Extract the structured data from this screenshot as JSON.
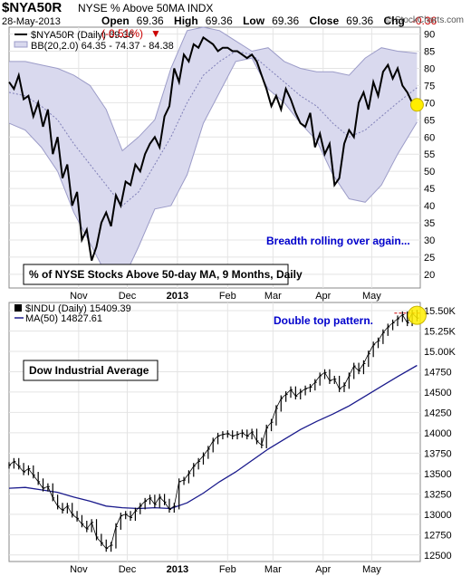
{
  "header": {
    "symbol": "$NYA50R",
    "description": "NYSE % Above 50MA  INDX",
    "date": "28-May-2013",
    "open_label": "Open",
    "open": "69.36",
    "high_label": "High",
    "high": "69.36",
    "low_label": "Low",
    "low": "69.36",
    "close_label": "Close",
    "close": "69.36",
    "chg_label": "Chg",
    "chg": "-0.36 (-0.51%)",
    "chg_arrow": "▼",
    "brand": "© StockCharts.com"
  },
  "colors": {
    "price": "#000000",
    "bband_fill": "#d9d9ee",
    "bband_line": "#9c9cc8",
    "bband_mid": "#8080b8",
    "ma_line": "#1a1a8c",
    "annotation_text": "#0000cc",
    "highlight": "#ffee00",
    "dash_line": "#cc0000",
    "grid": "#e4e4e4",
    "frame": "#888888"
  },
  "chart_data": [
    {
      "type": "line",
      "name": "upper-panel",
      "legend": [
        "$NYA50R (Daily) 69.36",
        "BB(20,2.0) 64.35 - 74.37 - 84.38"
      ],
      "label_box": "% of NYSE Stocks Above 50-day MA, 9 Months, Daily",
      "annotation": "Breadth rolling over again...",
      "ylim": [
        16,
        92
      ],
      "yticks": [
        20,
        25,
        30,
        35,
        40,
        45,
        50,
        55,
        60,
        65,
        70,
        75,
        80,
        85,
        90
      ],
      "xticks": [
        {
          "label": "Nov",
          "day": 43
        },
        {
          "label": "Dec",
          "day": 73
        },
        {
          "label": "2013",
          "day": 104
        },
        {
          "label": "Feb",
          "day": 135
        },
        {
          "label": "Mar",
          "day": 163
        },
        {
          "label": "Apr",
          "day": 194
        },
        {
          "label": "May",
          "day": 224
        }
      ],
      "xlim": [
        0,
        254
      ],
      "scale": "linear",
      "grid": true,
      "series": [
        {
          "name": "$NYA50R",
          "x": [
            0,
            3,
            6,
            9,
            12,
            15,
            18,
            21,
            24,
            27,
            30,
            33,
            36,
            39,
            42,
            45,
            48,
            51,
            54,
            57,
            60,
            63,
            66,
            69,
            72,
            75,
            78,
            81,
            84,
            87,
            90,
            93,
            96,
            99,
            102,
            105,
            108,
            111,
            114,
            117,
            120,
            123,
            126,
            129,
            132,
            135,
            138,
            141,
            144,
            147,
            150,
            153,
            156,
            159,
            162,
            165,
            168,
            171,
            174,
            177,
            180,
            183,
            186,
            189,
            192,
            195,
            198,
            201,
            204,
            207,
            210,
            213,
            216,
            219,
            222,
            225,
            228,
            231,
            234,
            237,
            240,
            243,
            246,
            249,
            252
          ],
          "values": [
            76,
            74,
            78,
            71,
            72,
            66,
            70,
            63,
            68,
            55,
            60,
            48,
            52,
            40,
            44,
            30,
            33,
            24,
            28,
            35,
            38,
            34,
            43,
            40,
            47,
            46,
            52,
            50,
            55,
            58,
            60,
            57,
            66,
            69,
            80,
            76,
            84,
            82,
            87,
            86,
            89,
            88,
            87,
            85,
            86,
            86,
            85,
            85,
            84,
            83,
            84,
            82,
            78,
            74,
            69,
            72,
            68,
            74,
            71,
            67,
            64,
            63,
            67,
            57,
            61,
            55,
            58,
            46,
            48,
            58,
            62,
            60,
            70,
            73,
            68,
            76,
            72,
            79,
            81,
            77,
            80,
            75,
            73,
            70,
            69.36
          ]
        },
        {
          "name": "BB Upper",
          "x": [
            0,
            10,
            20,
            30,
            40,
            50,
            60,
            70,
            80,
            90,
            100,
            110,
            120,
            130,
            140,
            150,
            160,
            170,
            180,
            190,
            200,
            210,
            220,
            230,
            240,
            252
          ],
          "values": [
            82,
            82,
            81,
            80,
            78,
            75,
            68,
            56,
            60,
            65,
            80,
            91,
            92,
            91,
            88,
            85,
            86,
            82,
            80,
            79,
            79,
            78,
            83,
            86,
            85,
            84.38
          ]
        },
        {
          "name": "BB Middle",
          "x": [
            0,
            10,
            20,
            30,
            40,
            50,
            60,
            70,
            80,
            90,
            100,
            110,
            120,
            130,
            140,
            150,
            160,
            170,
            180,
            190,
            200,
            210,
            220,
            230,
            240,
            252
          ],
          "values": [
            73,
            72,
            69,
            65,
            58,
            52,
            46,
            40,
            44,
            52,
            60,
            70,
            78,
            82,
            85,
            84,
            80,
            76,
            72,
            69,
            64,
            60,
            62,
            66,
            70,
            74.37
          ]
        },
        {
          "name": "BB Lower",
          "x": [
            0,
            10,
            20,
            30,
            40,
            50,
            60,
            70,
            80,
            90,
            100,
            110,
            120,
            130,
            140,
            150,
            160,
            170,
            180,
            190,
            200,
            210,
            220,
            230,
            240,
            252
          ],
          "values": [
            64,
            62,
            57,
            50,
            38,
            29,
            20,
            18,
            28,
            39,
            40,
            49,
            64,
            73,
            82,
            83,
            74,
            70,
            64,
            59,
            49,
            42,
            41,
            46,
            55,
            64.35
          ]
        }
      ]
    },
    {
      "type": "line",
      "name": "lower-panel",
      "legend": [
        "$INDU (Daily) 15409.39",
        "MA(50) 14827.61"
      ],
      "label_box": "Dow Industrial Average",
      "annotation": "Double top pattern.",
      "ylim": [
        12420,
        15600
      ],
      "yticks": [
        12500,
        12750,
        13000,
        13250,
        13500,
        13750,
        14000,
        14250,
        14500,
        14750,
        15000,
        15250,
        15500
      ],
      "ytick_labels": [
        "12500",
        "12750",
        "13000",
        "13250",
        "13500",
        "13750",
        "14000",
        "14250",
        "14500",
        "14750",
        "15.00K",
        "15.25K",
        "15.50K"
      ],
      "xticks": [
        {
          "label": "Nov",
          "day": 43
        },
        {
          "label": "Dec",
          "day": 73
        },
        {
          "label": "2013",
          "day": 104
        },
        {
          "label": "Feb",
          "day": 135
        },
        {
          "label": "Mar",
          "day": 163
        },
        {
          "label": "Apr",
          "day": 194
        },
        {
          "label": "May",
          "day": 224
        }
      ],
      "xlim": [
        0,
        254
      ],
      "scale": "linear",
      "grid": true,
      "series": [
        {
          "name": "$INDU",
          "x": [
            0,
            3,
            6,
            9,
            12,
            15,
            18,
            21,
            24,
            27,
            30,
            33,
            36,
            39,
            42,
            45,
            48,
            51,
            54,
            57,
            60,
            63,
            66,
            69,
            72,
            75,
            78,
            81,
            84,
            87,
            90,
            93,
            96,
            99,
            102,
            105,
            108,
            111,
            114,
            117,
            120,
            123,
            126,
            129,
            132,
            135,
            138,
            141,
            144,
            147,
            150,
            153,
            156,
            159,
            162,
            165,
            168,
            171,
            174,
            177,
            180,
            183,
            186,
            189,
            192,
            195,
            198,
            201,
            204,
            207,
            210,
            213,
            216,
            219,
            222,
            225,
            228,
            231,
            234,
            237,
            240,
            243,
            246,
            249,
            252
          ],
          "values": [
            13600,
            13650,
            13590,
            13520,
            13560,
            13480,
            13400,
            13320,
            13340,
            13200,
            13100,
            13050,
            13100,
            13000,
            12950,
            12880,
            12820,
            12900,
            12720,
            12650,
            12580,
            12620,
            12850,
            12980,
            13000,
            12960,
            13040,
            13100,
            13160,
            13200,
            13120,
            13210,
            13150,
            13060,
            13100,
            13400,
            13420,
            13500,
            13590,
            13650,
            13720,
            13800,
            13900,
            13960,
            13980,
            13990,
            13960,
            13980,
            14000,
            13960,
            14010,
            13900,
            13850,
            14060,
            14130,
            14300,
            14420,
            14470,
            14530,
            14450,
            14500,
            14540,
            14560,
            14620,
            14700,
            14740,
            14640,
            14660,
            14540,
            14580,
            14700,
            14820,
            14760,
            14850,
            14970,
            15080,
            15130,
            15230,
            15300,
            15350,
            15400,
            15450,
            15350,
            15470,
            15409.39
          ]
        },
        {
          "name": "MA(50)",
          "x": [
            0,
            10,
            20,
            30,
            40,
            50,
            60,
            70,
            80,
            90,
            100,
            110,
            120,
            130,
            140,
            150,
            160,
            170,
            180,
            190,
            200,
            210,
            220,
            230,
            240,
            252
          ],
          "values": [
            13320,
            13330,
            13300,
            13270,
            13210,
            13160,
            13100,
            13080,
            13070,
            13080,
            13070,
            13140,
            13260,
            13400,
            13520,
            13660,
            13800,
            13920,
            14040,
            14140,
            14230,
            14330,
            14450,
            14570,
            14690,
            14827.61
          ]
        }
      ]
    }
  ]
}
